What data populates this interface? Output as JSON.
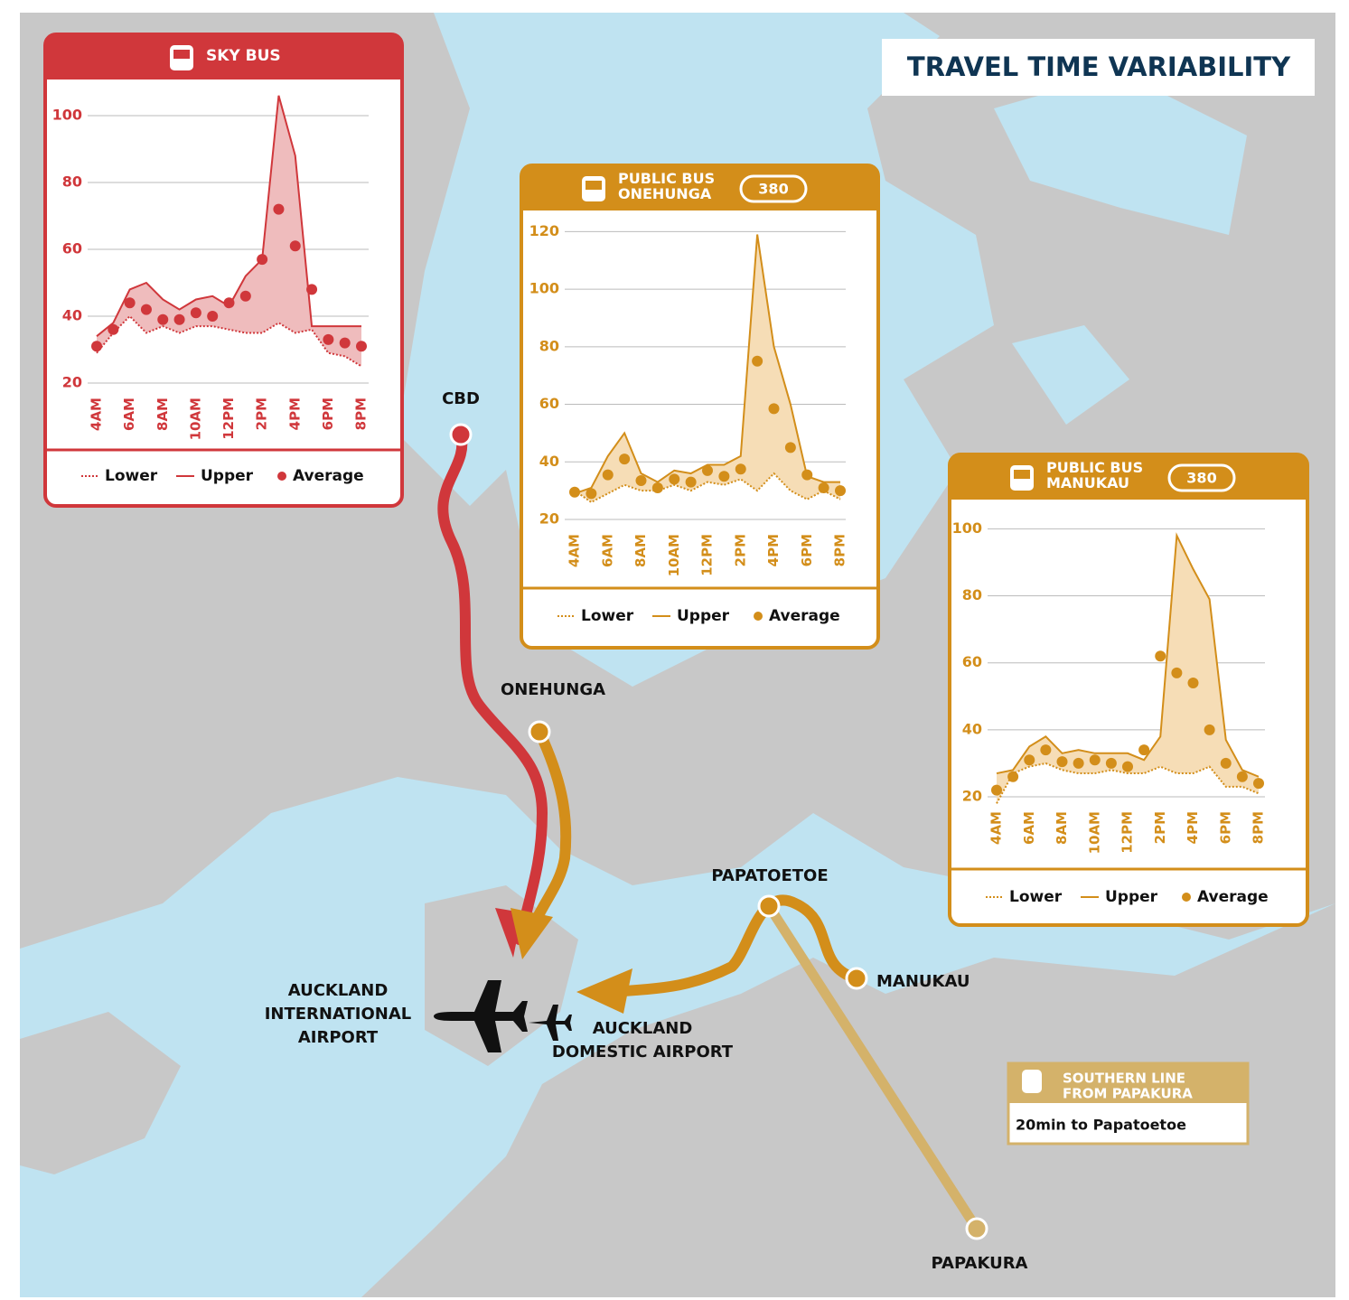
{
  "title": "TRAVEL TIME VARIABILITY",
  "chart_data": [
    {
      "type": "range-band",
      "title": [
        "SKY BUS"
      ],
      "color": "#d0373b",
      "categories": [
        "4AM",
        null,
        "6AM",
        null,
        "8AM",
        null,
        "10AM",
        null,
        "12PM",
        null,
        "2PM",
        null,
        "4PM",
        null,
        "6PM",
        null,
        "8PM"
      ],
      "series": [
        {
          "name": "Lower",
          "style": "dotted",
          "color": "#d0373b",
          "values": [
            29,
            35,
            40,
            35,
            37,
            35,
            37,
            37,
            36,
            35,
            35,
            38,
            35,
            36,
            29,
            28,
            25
          ]
        },
        {
          "name": "Upper",
          "style": "solid",
          "color": "#d0373b",
          "values": [
            34,
            38,
            48,
            50,
            45,
            42,
            45,
            46,
            43,
            52,
            57,
            106,
            88,
            37,
            37,
            37,
            37
          ]
        },
        {
          "name": "Average",
          "style": "dots",
          "color": "#d0373b",
          "values": [
            31,
            36,
            44,
            42,
            39,
            39,
            41,
            40,
            44,
            46,
            57,
            72,
            61,
            48,
            33,
            32,
            31
          ]
        }
      ],
      "band_color": "#efbcbd",
      "ylim": [
        20,
        110
      ],
      "yticks": [
        20,
        40,
        60,
        80,
        100
      ],
      "grid": true
    },
    {
      "type": "range-band",
      "title": [
        "PUBLIC BUS",
        "ONEHUNGA"
      ],
      "route": "380",
      "color": "#d38e1a",
      "categories": [
        "4AM",
        null,
        "6AM",
        null,
        "8AM",
        null,
        "10AM",
        null,
        "12PM",
        null,
        "2PM",
        null,
        "4PM",
        null,
        "6PM",
        null,
        "8PM"
      ],
      "series": [
        {
          "name": "Lower",
          "style": "dotted",
          "color": "#d38e1a",
          "values": [
            30,
            26,
            29,
            32,
            30,
            30,
            32,
            30,
            33,
            32,
            34,
            30,
            36,
            30,
            27,
            30,
            27
          ]
        },
        {
          "name": "Upper",
          "style": "solid",
          "color": "#d38e1a",
          "values": [
            29,
            31,
            42,
            50,
            36,
            33,
            37,
            36,
            39,
            39,
            42,
            119,
            80,
            60,
            35,
            33,
            33
          ]
        },
        {
          "name": "Average",
          "style": "dots",
          "color": "#d38e1a",
          "values": [
            29.5,
            29,
            35.5,
            41,
            33.5,
            31,
            34,
            33,
            37,
            35,
            37.5,
            75,
            58.5,
            45,
            35.5,
            31,
            30
          ]
        }
      ],
      "band_color": "#f6ddb6",
      "ylim": [
        20,
        122
      ],
      "yticks": [
        20,
        40,
        60,
        80,
        100,
        120
      ],
      "grid": true
    },
    {
      "type": "range-band",
      "title": [
        "PUBLIC BUS",
        "MANUKAU"
      ],
      "route": "380",
      "color": "#d38e1a",
      "categories": [
        "4AM",
        null,
        "6AM",
        null,
        "8AM",
        null,
        "10AM",
        null,
        "12PM",
        null,
        "2PM",
        null,
        "4PM",
        null,
        "6PM",
        null,
        "8PM"
      ],
      "series": [
        {
          "name": "Lower",
          "style": "dotted",
          "color": "#d38e1a",
          "values": [
            18,
            27,
            29,
            30,
            28,
            27,
            27,
            28,
            27,
            27,
            29,
            27,
            27,
            29,
            23,
            23,
            21
          ]
        },
        {
          "name": "Upper",
          "style": "solid",
          "color": "#d38e1a",
          "values": [
            27,
            28,
            35,
            38,
            33,
            34,
            33,
            33,
            33,
            31,
            38,
            98,
            88,
            79,
            37,
            28,
            26
          ]
        },
        {
          "name": "Average",
          "style": "dots",
          "color": "#d38e1a",
          "values": [
            22,
            26,
            31,
            34,
            30.5,
            30,
            31,
            30,
            29,
            34,
            62,
            57,
            54,
            40,
            30,
            26,
            24
          ]
        }
      ],
      "band_color": "#f6ddb6",
      "ylim": [
        20,
        102
      ],
      "yticks": [
        20,
        40,
        60,
        80,
        100
      ],
      "grid": true
    }
  ],
  "map": {
    "stops": [
      "CBD",
      "ONEHUNGA",
      "PAPATOETOE",
      "MANUKAU",
      "PAPAKURA"
    ],
    "international_airport": [
      "AUCKLAND",
      "INTERNATIONAL",
      "AIRPORT"
    ],
    "domestic_airport": [
      "AUCKLAND",
      "DOMESTIC AIRPORT"
    ],
    "train_box": {
      "title": [
        "SOUTHERN LINE",
        "FROM PAPAKURA"
      ],
      "text": "20min to Papatoetoe"
    }
  }
}
